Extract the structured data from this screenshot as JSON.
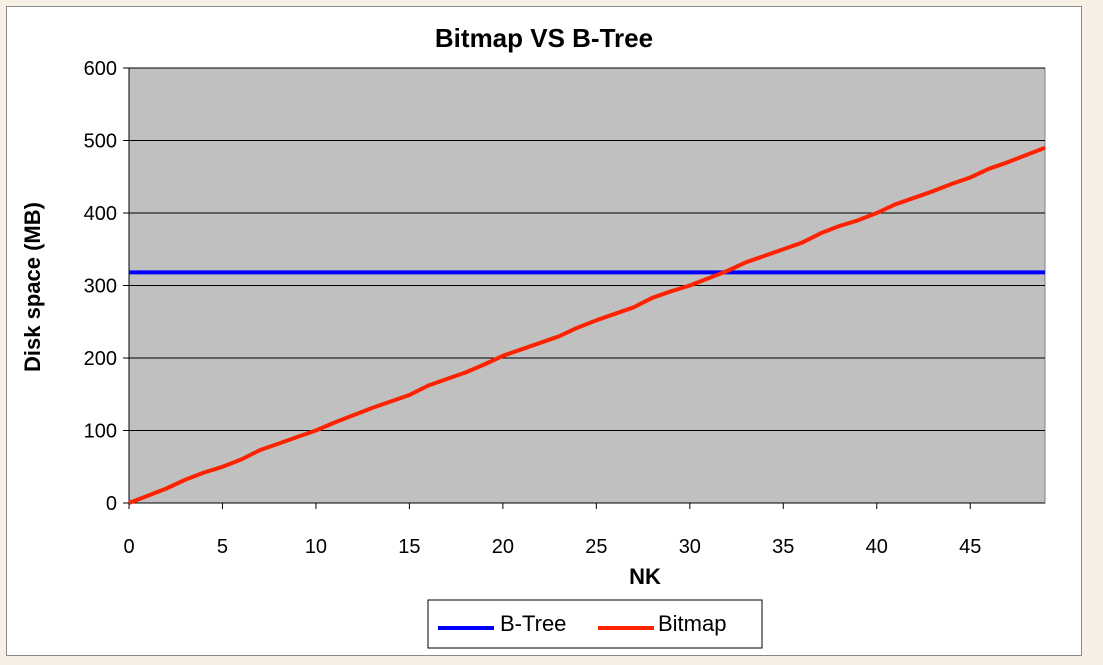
{
  "chart_data": {
    "type": "line",
    "title": "Bitmap VS B-Tree",
    "xlabel": "NK",
    "ylabel": "Disk space (MB)",
    "xlim": [
      0,
      49
    ],
    "ylim": [
      0,
      600
    ],
    "x_ticks": [
      "0",
      "5",
      "10",
      "15",
      "20",
      "25",
      "30",
      "35",
      "40",
      "45"
    ],
    "x_tick_values": [
      0,
      5,
      10,
      15,
      20,
      25,
      30,
      35,
      40,
      45
    ],
    "y_ticks": [
      "0",
      "100",
      "200",
      "300",
      "400",
      "500",
      "600"
    ],
    "y_tick_values": [
      0,
      100,
      200,
      300,
      400,
      500,
      600
    ],
    "grid": "horizontal",
    "plot_background": "#c0c0c0",
    "legend_position": "bottom",
    "series": [
      {
        "name": "B-Tree",
        "color": "#0000ff",
        "x": [
          0,
          49
        ],
        "values": [
          318,
          318
        ]
      },
      {
        "name": "Bitmap",
        "color": "#ff2200",
        "x": [
          0,
          1,
          2,
          3,
          4,
          5,
          6,
          7,
          8,
          9,
          10,
          11,
          12,
          13,
          14,
          15,
          16,
          17,
          18,
          19,
          20,
          21,
          22,
          23,
          24,
          25,
          26,
          27,
          28,
          29,
          30,
          31,
          32,
          33,
          34,
          35,
          36,
          37,
          38,
          39,
          40,
          41,
          42,
          43,
          44,
          45,
          46,
          47,
          48,
          49
        ],
        "values": [
          0,
          10,
          20,
          32,
          42,
          50,
          60,
          73,
          82,
          91,
          100,
          111,
          121,
          131,
          140,
          149,
          162,
          171,
          180,
          191,
          203,
          212,
          221,
          230,
          242,
          252,
          261,
          270,
          283,
          292,
          300,
          310,
          320,
          332,
          341,
          350,
          359,
          372,
          382,
          390,
          400,
          412,
          421,
          430,
          440,
          449,
          461,
          470,
          480,
          490
        ]
      }
    ]
  }
}
